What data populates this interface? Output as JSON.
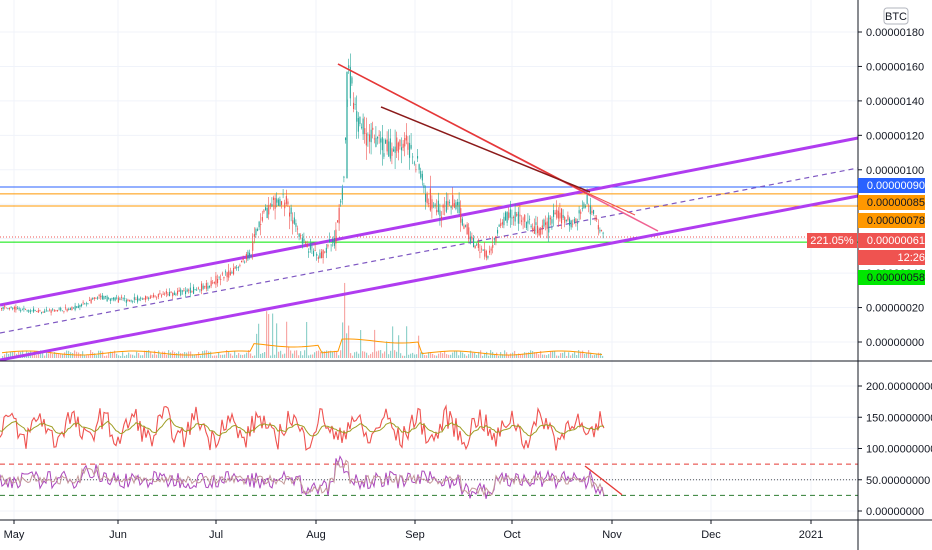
{
  "chart_data": {
    "type": "candlestick",
    "symbol_currency": "BTC",
    "x_axis": {
      "labels": [
        "May",
        "Jun",
        "Jul",
        "Aug",
        "Sep",
        "Oct",
        "Nov",
        "Dec",
        "2021"
      ]
    },
    "price_axis": {
      "ticks": [
        "0.00000180",
        "0.00000160",
        "0.00000140",
        "0.00000120",
        "0.00000100",
        "0.00000080",
        "0.00000060",
        "0.00000040",
        "0.00000020",
        "0.00000000"
      ],
      "range": [
        -5e-08,
        1.9e-06
      ]
    },
    "price_badges": [
      {
        "label": "0.00000090",
        "value": 9e-07,
        "color": "#2962ff"
      },
      {
        "label": "0.00000085",
        "value": 8.5e-07,
        "color": "#ff9800"
      },
      {
        "label": "0.00000078",
        "value": 7.8e-07,
        "color": "#ff9800"
      },
      {
        "label": "0.00000061",
        "value": 6.1e-07,
        "color": "#ef5350",
        "prefix": "221.05%"
      },
      {
        "label": "12:26",
        "value": 5e-07,
        "color": "#ef5350"
      },
      {
        "label": "0.00000058",
        "value": 3.8e-07,
        "color": "#00e600"
      }
    ],
    "horizontal_levels": [
      {
        "value": 9e-07,
        "color": "#2962ff"
      },
      {
        "value": 8.6e-07,
        "color": "#ff9800"
      },
      {
        "value": 7.9e-07,
        "color": "#ff9800"
      },
      {
        "value": 6.1e-07,
        "color": "#ef5350",
        "style": "dotted"
      },
      {
        "value": 5.8e-07,
        "color": "#00e600"
      }
    ],
    "price_series": {
      "approx_monthly_close": [
        {
          "x": "May",
          "y": 2e-07
        },
        {
          "x": "Jun",
          "y": 2.2e-07
        },
        {
          "x": "Jul",
          "y": 3.5e-07
        },
        {
          "x": "Aug",
          "y": 5e-07
        },
        {
          "x": "Sep",
          "y": 1.1e-06
        },
        {
          "x": "Oct",
          "y": 7e-07
        },
        {
          "x": "Nov",
          "y": 6.2e-07
        }
      ],
      "peak": {
        "x": "Aug",
        "y": 1.57e-06
      }
    },
    "indicator1_axis": {
      "ticks": [
        "200.00000000",
        "150.00000000",
        "100.00000000",
        "50.00000000",
        "0.00000000"
      ],
      "range": [
        0,
        220
      ]
    },
    "indicator2_levels": [
      {
        "value": 75,
        "color": "#e53935",
        "style": "dashed"
      },
      {
        "value": 50,
        "color": "#555555",
        "style": "dotted"
      },
      {
        "value": 25,
        "color": "#2e7d32",
        "style": "dashed"
      }
    ]
  }
}
